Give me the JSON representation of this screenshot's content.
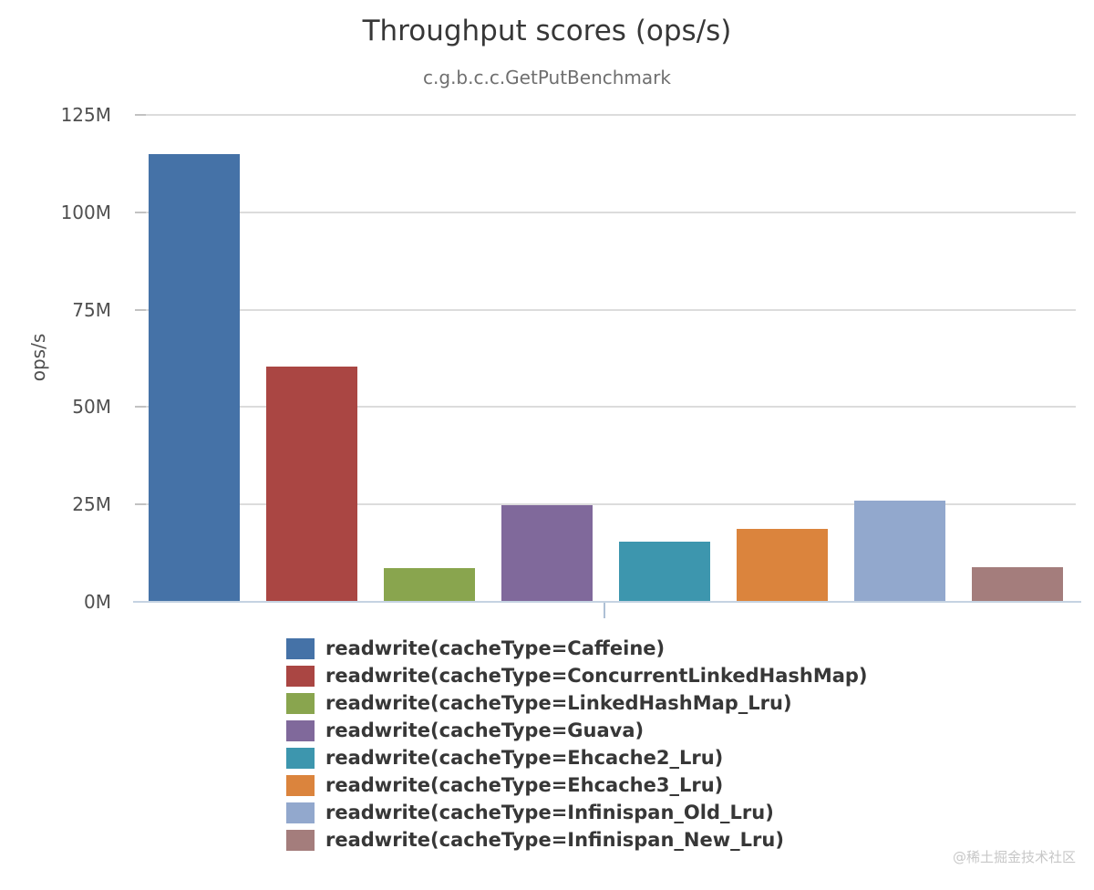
{
  "header": {
    "title": "Throughput scores (ops/s)",
    "subtitle": "c.g.b.c.c.GetPutBenchmark"
  },
  "chart_data": {
    "type": "bar",
    "title": "Throughput scores (ops/s)",
    "subtitle": "c.g.b.c.c.GetPutBenchmark",
    "xlabel": "",
    "ylabel": "ops/s",
    "unit": "millions of ops/s",
    "ylim_m": [
      0,
      125
    ],
    "grid": true,
    "legend_position": "bottom",
    "yticks": [
      {
        "v": 0,
        "label": "0M"
      },
      {
        "v": 25,
        "label": "25M"
      },
      {
        "v": 50,
        "label": "50M"
      },
      {
        "v": 75,
        "label": "75M"
      },
      {
        "v": 100,
        "label": "100M"
      },
      {
        "v": 125,
        "label": "125M"
      }
    ],
    "series": [
      {
        "name": "readwrite(cacheType=Caffeine)",
        "value_m": 114.9,
        "color": "#4572a7"
      },
      {
        "name": "readwrite(cacheType=ConcurrentLinkedHashMap)",
        "value_m": 60.4,
        "color": "#aa4643"
      },
      {
        "name": "readwrite(cacheType=LinkedHashMap_Lru)",
        "value_m": 8.7,
        "color": "#89a54e"
      },
      {
        "name": "readwrite(cacheType=Guava)",
        "value_m": 24.8,
        "color": "#80699b"
      },
      {
        "name": "readwrite(cacheType=Ehcache2_Lru)",
        "value_m": 15.4,
        "color": "#3d96ae"
      },
      {
        "name": "readwrite(cacheType=Ehcache3_Lru)",
        "value_m": 18.7,
        "color": "#db843d"
      },
      {
        "name": "readwrite(cacheType=Infinispan_Old_Lru)",
        "value_m": 26.0,
        "color": "#92a8cd"
      },
      {
        "name": "readwrite(cacheType=Infinispan_New_Lru)",
        "value_m": 8.9,
        "color": "#a47d7c"
      }
    ]
  },
  "watermark": {
    "text": "@稀土掘金技术社区"
  }
}
